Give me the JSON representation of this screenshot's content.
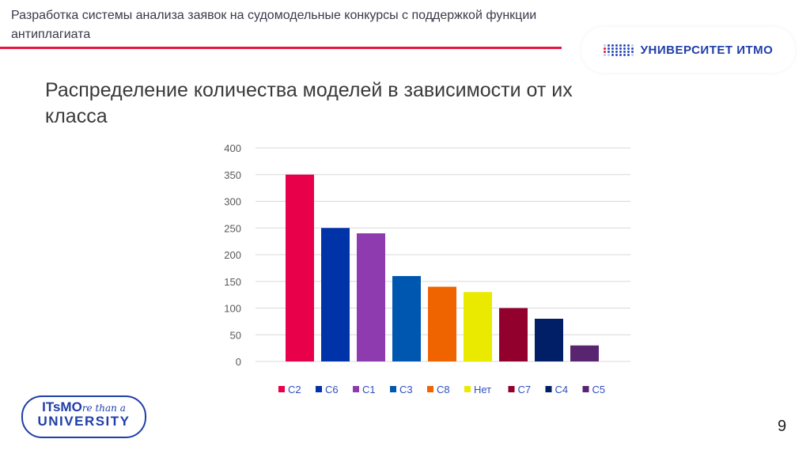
{
  "header": {
    "title": "Разработка системы анализа заявок на судомодельные конкурсы с поддержкой функции антиплагиата"
  },
  "logo_top": {
    "text": "УНИВЕРСИТЕТ ИТМО"
  },
  "logo_bottom": {
    "line1_bold": "ITsMO",
    "line1_script": "re than a",
    "line2": "UNIVERSITY"
  },
  "slide_number": "9",
  "colors": {
    "accent_red": "#e5173f",
    "brand_blue": "#1f3ea8"
  },
  "chart_data": {
    "type": "bar",
    "title": "Распределение количества моделей в зависимости от их класса",
    "categories": [
      "C2",
      "C6",
      "C1",
      "C3",
      "C8",
      "Нет",
      "C7",
      "C4",
      "C5"
    ],
    "values": [
      350,
      250,
      240,
      160,
      140,
      130,
      100,
      80,
      30
    ],
    "colors": [
      "#e8004a",
      "#0033a8",
      "#8e3bb0",
      "#0057b0",
      "#f06400",
      "#eaea00",
      "#92002d",
      "#001f66",
      "#5a2570"
    ],
    "yticks": [
      0,
      50,
      100,
      150,
      200,
      250,
      300,
      350,
      400
    ],
    "ylim": [
      0,
      400
    ],
    "xlabel": "",
    "ylabel": "",
    "grid": true,
    "legend": "bottom"
  }
}
